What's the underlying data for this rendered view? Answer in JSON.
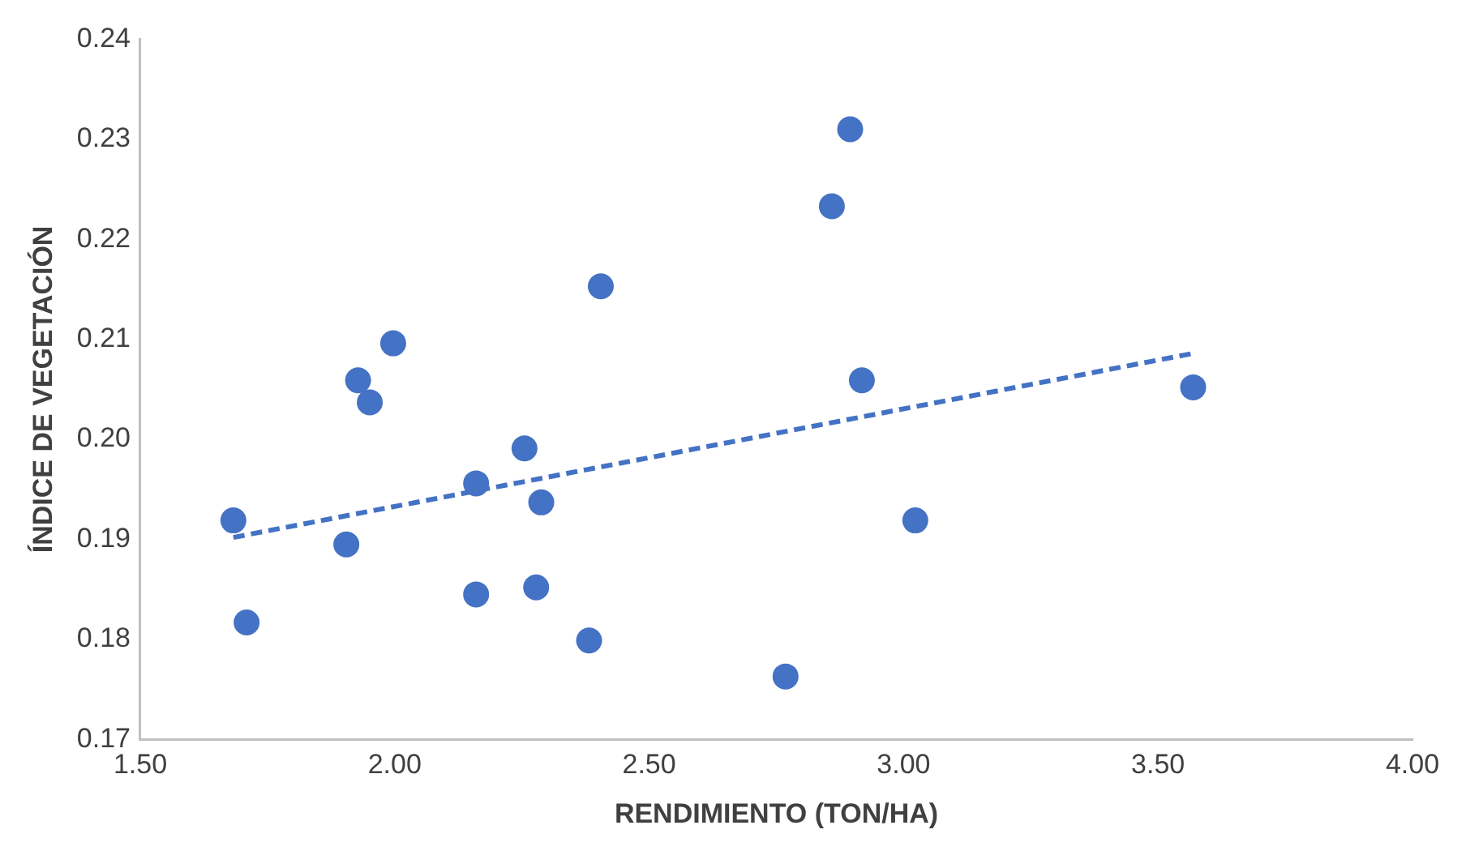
{
  "chart_data": {
    "type": "scatter",
    "xlabel": "RENDIMIENTO (TON/HA)",
    "ylabel": "ÍNDICE DE VEGETACIÓN",
    "x": [
      1.683,
      1.709,
      1.905,
      1.928,
      1.951,
      1.997,
      2.16,
      2.16,
      2.255,
      2.288,
      2.278,
      2.382,
      2.405,
      2.768,
      2.859,
      2.895,
      2.918,
      3.023,
      3.569
    ],
    "series": [
      {
        "type": "scatter",
        "color": "#4472c4",
        "marker": "circle",
        "values": [
          0.1919,
          0.1817,
          0.1895,
          0.2059,
          0.2037,
          0.2096,
          0.1956,
          0.1845,
          0.1991,
          0.1937,
          0.1852,
          0.1799,
          0.2153,
          0.1763,
          0.2233,
          0.231,
          0.2059,
          0.1919,
          0.2052
        ]
      },
      {
        "type": "line",
        "color": "#4472c4",
        "line_style": "dashed",
        "marker": "none",
        "x": [
          1.683,
          3.569
        ],
        "values": [
          0.1902,
          0.2086
        ]
      }
    ],
    "xlim": [
      1.5,
      4.0
    ],
    "xticks": [
      {
        "value": 1.5,
        "label": "1.50"
      },
      {
        "value": 2.0,
        "label": "2.00"
      },
      {
        "value": 2.5,
        "label": "2.50"
      },
      {
        "value": 3.0,
        "label": "3.00"
      },
      {
        "value": 3.5,
        "label": "3.50"
      },
      {
        "value": 4.0,
        "label": "4.00"
      }
    ],
    "ylim": [
      0.17,
      0.24
    ],
    "yticks": [
      0.17,
      0.18,
      0.19,
      {
        "value": 0.2,
        "label": "0.20"
      },
      0.21,
      0.22,
      0.23,
      0.24
    ],
    "grid": false,
    "legend": false
  }
}
